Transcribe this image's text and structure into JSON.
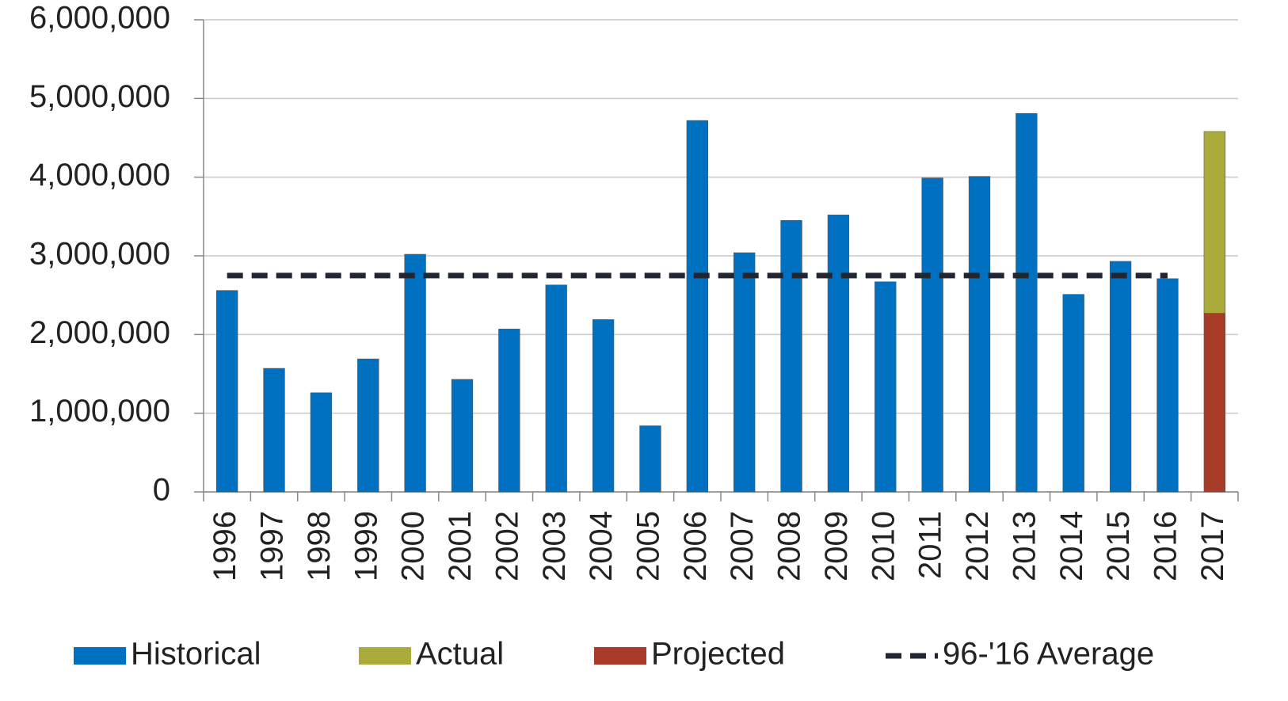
{
  "chart_data": {
    "type": "bar",
    "stacked": true,
    "categories": [
      "1996",
      "1997",
      "1998",
      "1999",
      "2000",
      "2001",
      "2002",
      "2003",
      "2004",
      "2005",
      "2006",
      "2007",
      "2008",
      "2009",
      "2010",
      "2011",
      "2012",
      "2013",
      "2014",
      "2015",
      "2016",
      "2017"
    ],
    "series": [
      {
        "name": "Historical",
        "type": "bar",
        "color": "#0070c0",
        "values": [
          2560000,
          1570000,
          1260000,
          1690000,
          3020000,
          1430000,
          2070000,
          2630000,
          2190000,
          840000,
          4720000,
          3040000,
          3450000,
          3520000,
          2670000,
          3990000,
          4010000,
          4810000,
          2510000,
          2930000,
          2710000,
          null
        ]
      },
      {
        "name": "Actual",
        "type": "bar",
        "color": "#abab3c",
        "values": [
          null,
          null,
          null,
          null,
          null,
          null,
          null,
          null,
          null,
          null,
          null,
          null,
          null,
          null,
          null,
          null,
          null,
          null,
          null,
          null,
          null,
          2310000
        ]
      },
      {
        "name": "Projected",
        "type": "bar",
        "color": "#a83a28",
        "values": [
          null,
          null,
          null,
          null,
          null,
          null,
          null,
          null,
          null,
          null,
          null,
          null,
          null,
          null,
          null,
          null,
          null,
          null,
          null,
          null,
          null,
          2270000
        ]
      },
      {
        "name": "96-'16 Average",
        "type": "line",
        "dashed": true,
        "color": "#222631",
        "values": [
          2750000,
          2750000,
          2750000,
          2750000,
          2750000,
          2750000,
          2750000,
          2750000,
          2750000,
          2750000,
          2750000,
          2750000,
          2750000,
          2750000,
          2750000,
          2750000,
          2750000,
          2750000,
          2750000,
          2750000,
          2750000,
          null
        ]
      }
    ],
    "ylim": [
      0,
      6000000
    ],
    "yticks": [
      0,
      {
        "value": 1000000,
        "label": "1,000,000"
      },
      {
        "value": 2000000,
        "label": "2,000,000"
      },
      {
        "value": 3000000,
        "label": "3,000,000"
      },
      {
        "value": 4000000,
        "label": "4,000,000"
      },
      {
        "value": 5000000,
        "label": "5,000,000"
      },
      {
        "value": 6000000,
        "label": "6,000,000"
      }
    ],
    "grid": true,
    "legend": "bottom"
  }
}
